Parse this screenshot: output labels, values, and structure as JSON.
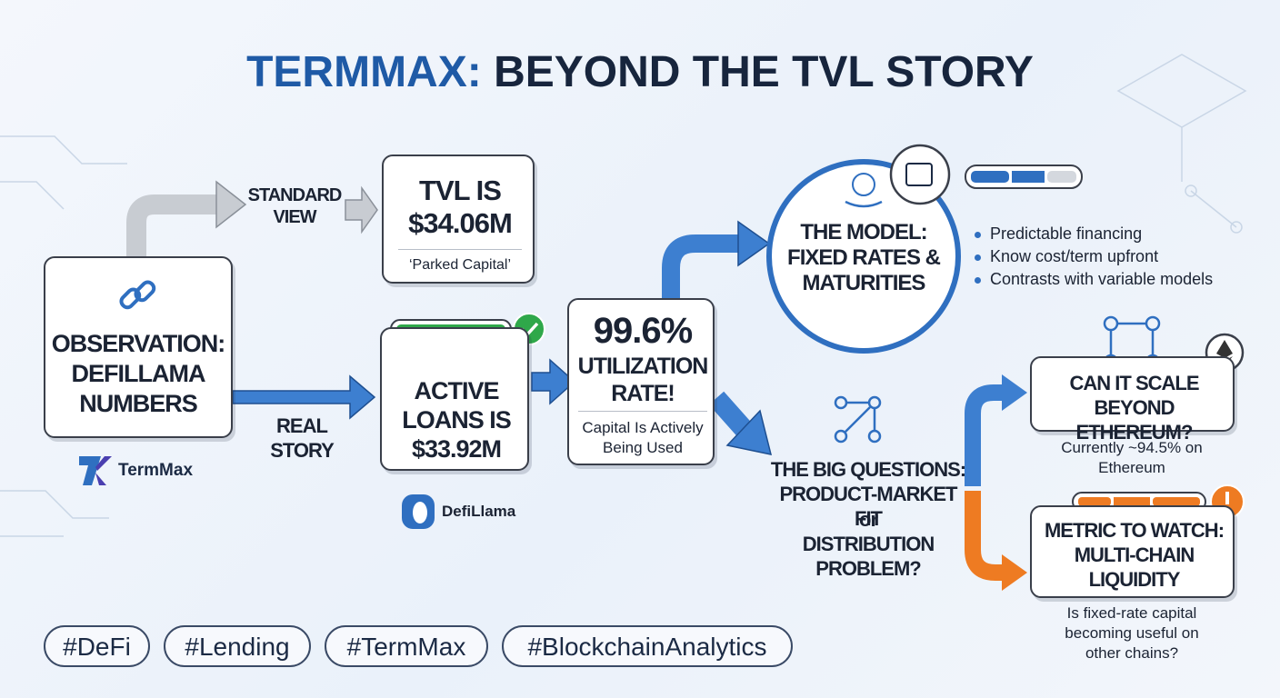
{
  "title": {
    "accent": "TERMMAX:",
    "rest": "BEYOND THE TVL STORY"
  },
  "observation": {
    "label": "OBSERVATION: DEFILLAMA NUMBERS",
    "brand": "TermMax"
  },
  "standard_view": {
    "label": "STANDARD VIEW",
    "headline": "TVL IS $34.06M",
    "note": "‘Parked Capital’"
  },
  "real_story": {
    "label": "REAL STORY",
    "headline": "ACTIVE LOANS IS $33.92M",
    "source": "DefiLlama"
  },
  "utilization": {
    "headline": "99.6%",
    "subhead": "UTILIZATION RATE!",
    "note": "Capital Is Actively Being Used"
  },
  "model": {
    "label": "THE MODEL: FIXED RATES & MATURITIES",
    "bullets": [
      "Predictable financing",
      "Know cost/term upfront",
      "Contrasts with variable models"
    ]
  },
  "big_questions": {
    "label": "THE BIG QUESTIONS: PRODUCT-MARKET FIT",
    "joiner": "or",
    "label2": "DISTRIBUTION PROBLEM?"
  },
  "scale": {
    "label": "CAN IT SCALE BEYOND ETHEREUM?",
    "note": "Currently ~94.5% on Ethereum"
  },
  "metric": {
    "label": "METRIC TO WATCH: MULTI-CHAIN LIQUIDITY",
    "note": "Is fixed-rate capital becoming useful on other chains?"
  },
  "tags": [
    "#DeFi",
    "#Lending",
    "#TermMax",
    "#BlockchainAnalytics"
  ]
}
